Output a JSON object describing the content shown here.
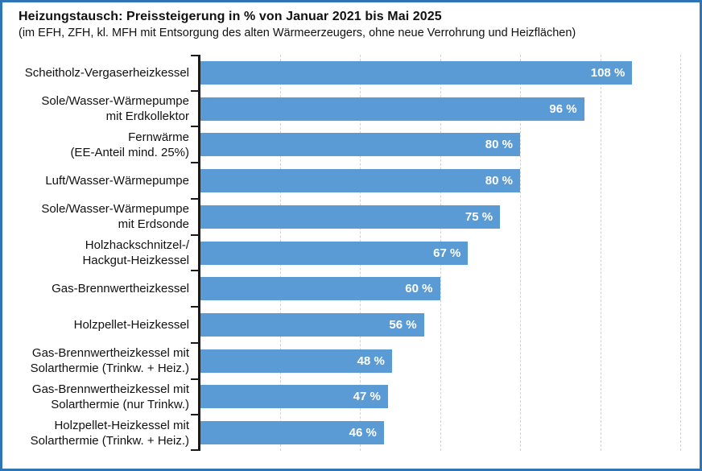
{
  "chart_data": {
    "type": "bar",
    "orientation": "horizontal",
    "title": "Heizungstausch: Preissteigerung in % von Januar 2021 bis Mai 2025",
    "subtitle": "(im EFH, ZFH, kl. MFH mit Entsorgung des alten Wärmeerzeugers, ohne neue Verrohrung und Heizflächen)",
    "unit": "%",
    "categories": [
      "Scheitholz-Vergaserheizkessel",
      "Sole/Wasser-Wärmepumpe mit Erdkollektor",
      "Fernwärme (EE-Anteil mind. 25%)",
      "Luft/Wasser-Wärmepumpe",
      "Sole/Wasser-Wärmepumpe mit Erdsonde",
      "Holzhackschnitzel-/ Hackgut-Heizkessel",
      "Gas-Brennwertheizkessel",
      "Holzpellet-Heizkessel",
      "Gas-Brennwertheizkessel mit Solarthermie (Trinkw. + Heiz.)",
      "Gas-Brennwertheizkessel mit Solarthermie (nur Trinkw.)",
      "Holzpellet-Heizkessel mit Solarthermie (Trinkw. + Heiz.)"
    ],
    "category_lines": [
      [
        "Scheitholz-Vergaserheizkessel"
      ],
      [
        "Sole/Wasser-Wärmepumpe",
        "mit Erdkollektor"
      ],
      [
        "Fernwärme",
        "(EE-Anteil mind. 25%)"
      ],
      [
        "Luft/Wasser-Wärmepumpe"
      ],
      [
        "Sole/Wasser-Wärmepumpe",
        "mit Erdsonde"
      ],
      [
        "Holzhackschnitzel-/",
        "Hackgut-Heizkessel"
      ],
      [
        "Gas-Brennwertheizkessel"
      ],
      [
        "Holzpellet-Heizkessel"
      ],
      [
        "Gas-Brennwertheizkessel mit",
        "Solarthermie (Trinkw. + Heiz.)"
      ],
      [
        "Gas-Brennwertheizkessel mit",
        "Solarthermie (nur Trinkw.)"
      ],
      [
        "Holzpellet-Heizkessel mit",
        "Solarthermie (Trinkw. + Heiz.)"
      ]
    ],
    "values": [
      108,
      96,
      80,
      80,
      75,
      67,
      60,
      56,
      48,
      47,
      46
    ],
    "value_labels": [
      "108 %",
      "96 %",
      "80 %",
      "80 %",
      "75 %",
      "67 %",
      "60 %",
      "56 %",
      "48 %",
      "47 %",
      "46 %"
    ],
    "xlim": [
      0,
      120
    ],
    "gridlines": [
      20,
      40,
      60,
      80,
      100,
      120
    ],
    "legend": "none",
    "value_labels_position": "inside-end",
    "colors": {
      "bar": "#5B9BD5",
      "value_label": "#FFFFFF",
      "frame_border": "#2E75B6",
      "axis": "#1A1A1A",
      "gridline": "#D2D2D2",
      "text": "#111111"
    }
  }
}
